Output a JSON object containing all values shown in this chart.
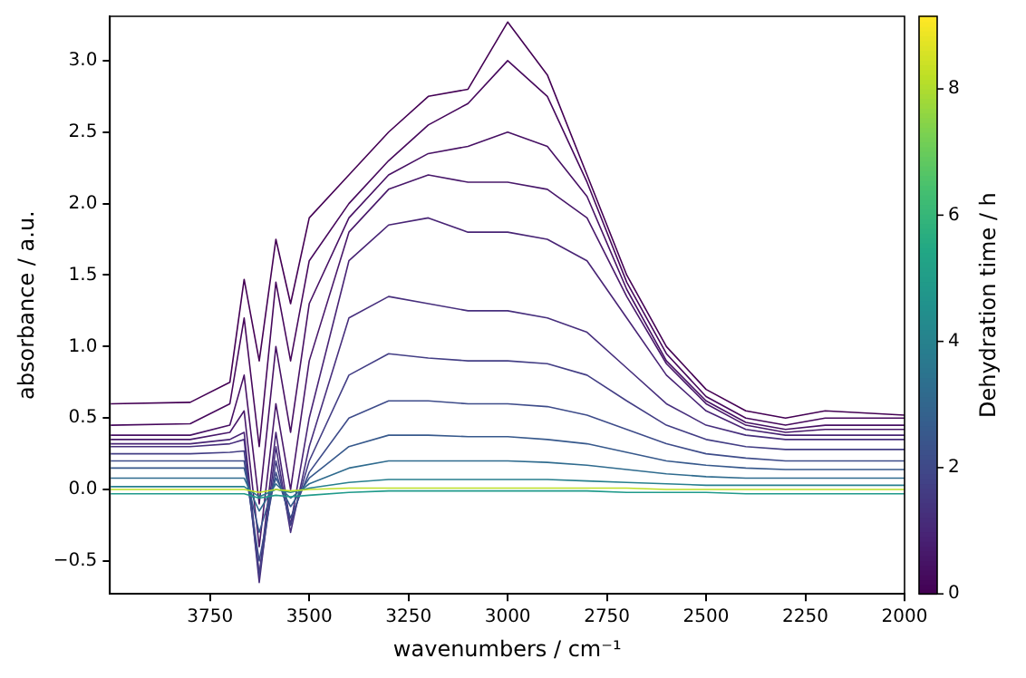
{
  "chart_data": {
    "type": "line",
    "xlabel": "wavenumbers / cm⁻¹",
    "ylabel": "absorbance / a.u.",
    "clabel": "Dehydration time / h",
    "clim": [
      0,
      9.15
    ],
    "cticks": [
      0,
      2,
      4,
      6,
      8
    ],
    "xlim": [
      4002,
      2000
    ],
    "xticks": [
      3750,
      3500,
      3250,
      3000,
      2750,
      2500,
      2250,
      2000
    ],
    "ylim": [
      -0.73,
      3.31
    ],
    "yticks": [
      {
        "value": -0.5,
        "label": "−0.5"
      },
      {
        "value": 0,
        "label": "0.0"
      },
      {
        "value": 0.5,
        "label": "0.5"
      },
      {
        "value": 1,
        "label": "1.0"
      },
      {
        "value": 1.5,
        "label": "1.5"
      },
      {
        "value": 2,
        "label": "2.0"
      },
      {
        "value": 2.5,
        "label": "2.5"
      },
      {
        "value": 3,
        "label": "3.0"
      }
    ],
    "x": [
      4000,
      3800,
      3700,
      3664,
      3626,
      3584,
      3547,
      3500,
      3400,
      3300,
      3200,
      3100,
      3000,
      2900,
      2800,
      2700,
      2600,
      2500,
      2400,
      2300,
      2200,
      2000
    ],
    "series": [
      {
        "color": "#bddf26",
        "values": [
          0,
          0,
          0,
          0,
          -0.02,
          0,
          -0.01,
          0,
          0.01,
          0.01,
          0.01,
          0.01,
          0.01,
          0.01,
          0.01,
          0.01,
          0,
          0,
          0,
          0,
          0,
          0
        ]
      },
      {
        "color": "#1f9a8a",
        "values": [
          -0.03,
          -0.03,
          -0.03,
          -0.03,
          -0.06,
          -0.04,
          -0.05,
          -0.04,
          -0.02,
          -0.01,
          -0.01,
          -0.01,
          -0.01,
          -0.01,
          -0.01,
          -0.02,
          -0.02,
          -0.02,
          -0.03,
          -0.03,
          -0.03,
          -0.03
        ]
      },
      {
        "color": "#277f8e",
        "values": [
          0.02,
          0.02,
          0.02,
          0.02,
          -0.05,
          0,
          -0.02,
          0.01,
          0.05,
          0.07,
          0.07,
          0.07,
          0.07,
          0.07,
          0.06,
          0.05,
          0.04,
          0.03,
          0.03,
          0.03,
          0.03,
          0.03
        ]
      },
      {
        "color": "#2f6b8e",
        "values": [
          0.08,
          0.08,
          0.08,
          0.08,
          -0.15,
          0.04,
          -0.06,
          0.04,
          0.15,
          0.2,
          0.2,
          0.2,
          0.2,
          0.19,
          0.17,
          0.14,
          0.11,
          0.09,
          0.08,
          0.08,
          0.08,
          0.08
        ]
      },
      {
        "color": "#37598c",
        "values": [
          0.15,
          0.15,
          0.15,
          0.15,
          -0.3,
          0.08,
          -0.12,
          0.08,
          0.3,
          0.38,
          0.38,
          0.37,
          0.37,
          0.35,
          0.32,
          0.26,
          0.2,
          0.17,
          0.15,
          0.14,
          0.14,
          0.14
        ]
      },
      {
        "color": "#3e4c8a",
        "values": [
          0.2,
          0.2,
          0.2,
          0.2,
          -0.5,
          0.12,
          -0.2,
          0.12,
          0.5,
          0.62,
          0.62,
          0.6,
          0.6,
          0.58,
          0.52,
          0.42,
          0.32,
          0.25,
          0.22,
          0.2,
          0.2,
          0.2
        ]
      },
      {
        "color": "#433e85",
        "values": [
          0.25,
          0.25,
          0.26,
          0.27,
          -0.6,
          0.2,
          -0.25,
          0.2,
          0.8,
          0.95,
          0.92,
          0.9,
          0.9,
          0.88,
          0.8,
          0.62,
          0.45,
          0.35,
          0.3,
          0.28,
          0.28,
          0.28
        ]
      },
      {
        "color": "#472f7d",
        "values": [
          0.3,
          0.3,
          0.32,
          0.35,
          -0.65,
          0.3,
          -0.3,
          0.3,
          1.2,
          1.35,
          1.3,
          1.25,
          1.25,
          1.2,
          1.1,
          0.85,
          0.6,
          0.45,
          0.38,
          0.35,
          0.35,
          0.35
        ]
      },
      {
        "color": "#482475",
        "values": [
          0.32,
          0.32,
          0.35,
          0.4,
          -0.6,
          0.4,
          -0.25,
          0.5,
          1.6,
          1.85,
          1.9,
          1.8,
          1.8,
          1.75,
          1.6,
          1.2,
          0.8,
          0.55,
          0.42,
          0.38,
          0.38,
          0.38
        ]
      },
      {
        "color": "#48186a",
        "values": [
          0.35,
          0.35,
          0.4,
          0.55,
          -0.4,
          0.6,
          0,
          0.9,
          1.8,
          2.1,
          2.2,
          2.15,
          2.15,
          2.1,
          1.9,
          1.35,
          0.88,
          0.6,
          0.45,
          0.4,
          0.42,
          0.42
        ]
      },
      {
        "color": "#471164",
        "values": [
          0.38,
          0.38,
          0.45,
          0.8,
          -0.1,
          1,
          0.4,
          1.3,
          1.9,
          2.2,
          2.35,
          2.4,
          2.5,
          2.4,
          2.05,
          1.4,
          0.9,
          0.62,
          0.47,
          0.42,
          0.45,
          0.45
        ]
      },
      {
        "color": "#46085c",
        "values": [
          0.45,
          0.46,
          0.6,
          1.2,
          0.3,
          1.45,
          0.9,
          1.6,
          2,
          2.3,
          2.55,
          2.7,
          3,
          2.75,
          2.15,
          1.45,
          0.95,
          0.65,
          0.5,
          0.45,
          0.5,
          0.5
        ]
      },
      {
        "color": "#440154",
        "values": [
          0.6,
          0.61,
          0.75,
          1.47,
          0.9,
          1.75,
          1.3,
          1.9,
          2.2,
          2.5,
          2.75,
          2.8,
          3.27,
          2.9,
          2.2,
          1.5,
          1,
          0.7,
          0.55,
          0.5,
          0.55,
          0.52
        ]
      }
    ]
  }
}
